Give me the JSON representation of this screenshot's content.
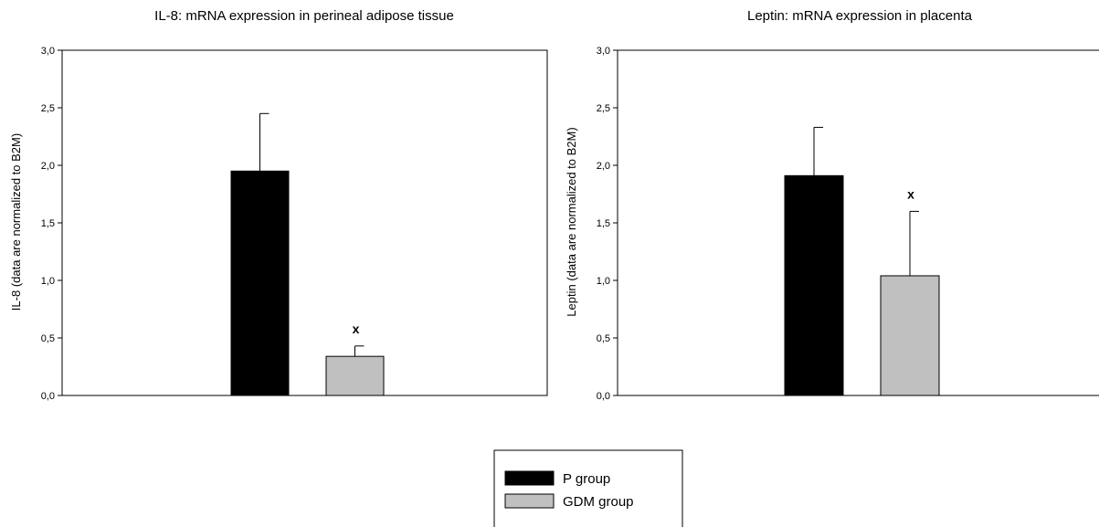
{
  "chart_data": [
    {
      "type": "bar",
      "title": "IL-8: mRNA expression in perineal adipose tissue",
      "xlabel": "",
      "ylabel": "IL-8 (data are normalized to B2M)",
      "ylim": [
        0,
        3.0
      ],
      "yticks": [
        "0,0",
        "0,5",
        "1,0",
        "1,5",
        "2,0",
        "2,5",
        "3,0"
      ],
      "series": [
        {
          "name": "P group",
          "values": [
            1.95
          ],
          "error": [
            0.5
          ],
          "color": "#000000"
        },
        {
          "name": "GDM group",
          "values": [
            0.34
          ],
          "error": [
            0.09
          ],
          "color": "#c0c0c0",
          "annotation": "x"
        }
      ]
    },
    {
      "type": "bar",
      "title": "Leptin: mRNA expression in placenta",
      "xlabel": "",
      "ylabel": "Leptin (data are normalized to B2M)",
      "ylim": [
        0,
        3.0
      ],
      "yticks": [
        "0,0",
        "0,5",
        "1,0",
        "1,5",
        "2,0",
        "2,5",
        "3,0"
      ],
      "series": [
        {
          "name": "P group",
          "values": [
            1.91
          ],
          "error": [
            0.42
          ],
          "color": "#000000"
        },
        {
          "name": "GDM group",
          "values": [
            1.04
          ],
          "error": [
            0.56
          ],
          "color": "#c0c0c0",
          "annotation": "x"
        }
      ]
    }
  ],
  "legend": {
    "items": [
      {
        "label": "P group",
        "color": "#000000"
      },
      {
        "label": "GDM group",
        "color": "#c0c0c0"
      }
    ]
  }
}
